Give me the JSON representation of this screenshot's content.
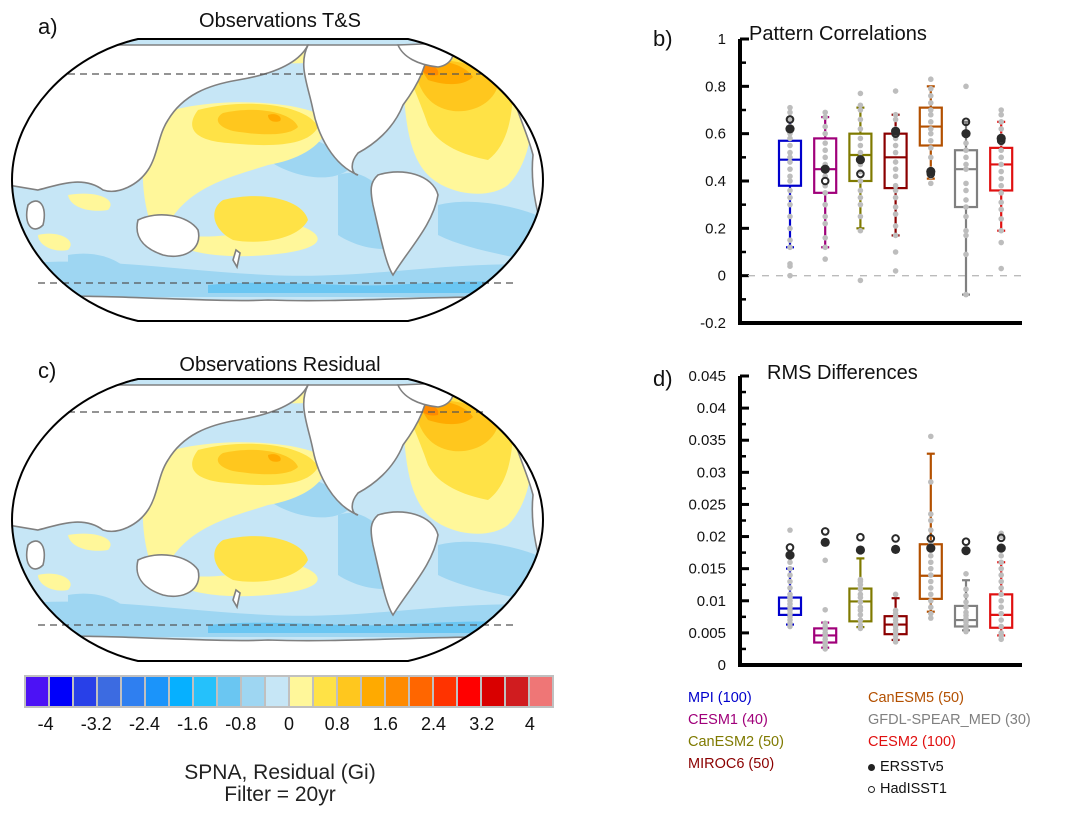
{
  "panels": {
    "a": {
      "label": "a)",
      "title": "Observations T&S"
    },
    "b": {
      "label": "b)"
    },
    "c": {
      "label": "c)",
      "title": "Observations Residual"
    },
    "d": {
      "label": "d)"
    }
  },
  "colorbar": {
    "colors": [
      "#4c12f5",
      "#0000fa",
      "#2840e8",
      "#3c6be1",
      "#2f7ff0",
      "#1b94fa",
      "#06b0ff",
      "#25c1fb",
      "#6ac6f2",
      "#9ed6f2",
      "#c6e6f6",
      "#fff79a",
      "#ffe246",
      "#ffc71e",
      "#ffaa00",
      "#ff8a00",
      "#ff6600",
      "#ff3300",
      "#ff0000",
      "#d90000",
      "#d01c1f",
      "#ef7676"
    ],
    "tick_labels": [
      "-4",
      "-3.2",
      "-2.4",
      "-1.6",
      "-0.8",
      "0",
      "0.8",
      "1.6",
      "2.4",
      "3.2",
      "4"
    ],
    "caption_line1": "SPNA, Residual (Gi)",
    "caption_line2": "Filter = 20yr"
  },
  "maps": {
    "ocean_colors": {
      "neutral_blue": "#c6e6f6",
      "mid_blue": "#9ed6f2",
      "deep_blue": "#6ac6f2",
      "pale_yellow": "#fff79a",
      "yellow": "#ffe246",
      "gold": "#ffc71e",
      "orange": "#ffaa00",
      "dark_orange": "#ff8a00"
    },
    "land_color": "#ffffff",
    "coast_color": "#808080"
  },
  "chart_data": [
    {
      "type": "box",
      "title": "Pattern Correlations",
      "ylim": [
        -0.2,
        1
      ],
      "yticks": [
        -0.2,
        0,
        0.2,
        0.4,
        0.6,
        0.8,
        1
      ],
      "ytick_labels": [
        "-0.2",
        "0",
        "0.2",
        "0.4",
        "0.6",
        "0.8",
        "1"
      ],
      "reference_line": 0,
      "categories": [
        "MPI",
        "CESM1",
        "CanESM2",
        "MIROC6",
        "CanESM5",
        "GFDL-SPEAR_MED",
        "CESM2"
      ],
      "series": [
        {
          "name": "MPI",
          "color": "#0000cc",
          "whisker_low": 0.12,
          "q1": 0.38,
          "median": 0.49,
          "q3": 0.57,
          "whisker_high": 0.66,
          "ersst": 0.62,
          "hadisst": 0.66,
          "members": [
            0.0,
            0.04,
            0.05,
            0.12,
            0.15,
            0.2,
            0.25,
            0.3,
            0.33,
            0.36,
            0.4,
            0.42,
            0.45,
            0.48,
            0.5,
            0.52,
            0.55,
            0.58,
            0.6,
            0.63,
            0.66,
            0.69,
            0.71
          ]
        },
        {
          "name": "CESM1",
          "color": "#a0007a",
          "whisker_low": 0.12,
          "q1": 0.35,
          "median": 0.45,
          "q3": 0.58,
          "whisker_high": 0.67,
          "ersst": 0.45,
          "hadisst": 0.4,
          "members": [
            0.07,
            0.12,
            0.16,
            0.22,
            0.25,
            0.3,
            0.35,
            0.38,
            0.42,
            0.47,
            0.5,
            0.53,
            0.56,
            0.6,
            0.63,
            0.67,
            0.69
          ]
        },
        {
          "name": "CanESM2",
          "color": "#7f7a00",
          "whisker_low": 0.2,
          "q1": 0.4,
          "median": 0.51,
          "q3": 0.6,
          "whisker_high": 0.71,
          "ersst": 0.49,
          "hadisst": 0.43,
          "members": [
            -0.02,
            0.19,
            0.25,
            0.3,
            0.33,
            0.36,
            0.4,
            0.44,
            0.47,
            0.52,
            0.55,
            0.58,
            0.62,
            0.66,
            0.7,
            0.72,
            0.77
          ]
        },
        {
          "name": "MIROC6",
          "color": "#8b0000",
          "whisker_low": 0.17,
          "q1": 0.37,
          "median": 0.5,
          "q3": 0.6,
          "whisker_high": 0.68,
          "ersst": 0.61,
          "hadisst": 0.6,
          "members": [
            0.02,
            0.1,
            0.17,
            0.21,
            0.26,
            0.29,
            0.33,
            0.36,
            0.38,
            0.42,
            0.45,
            0.48,
            0.52,
            0.55,
            0.58,
            0.62,
            0.66,
            0.68,
            0.78
          ]
        },
        {
          "name": "CanESM5",
          "color": "#b35000",
          "whisker_low": 0.41,
          "q1": 0.55,
          "median": 0.63,
          "q3": 0.71,
          "whisker_high": 0.8,
          "ersst": 0.44,
          "hadisst": 0.43,
          "members": [
            0.39,
            0.42,
            0.45,
            0.5,
            0.54,
            0.57,
            0.6,
            0.62,
            0.65,
            0.68,
            0.7,
            0.73,
            0.76,
            0.79,
            0.83
          ]
        },
        {
          "name": "GFDL-SPEAR_MED",
          "color": "#808080",
          "whisker_low": -0.08,
          "q1": 0.29,
          "median": 0.45,
          "q3": 0.53,
          "whisker_high": 0.65,
          "ersst": 0.6,
          "hadisst": 0.65,
          "members": [
            -0.08,
            0.09,
            0.17,
            0.19,
            0.25,
            0.29,
            0.32,
            0.36,
            0.39,
            0.45,
            0.47,
            0.5,
            0.53,
            0.56,
            0.6,
            0.8
          ]
        },
        {
          "name": "CESM2",
          "color": "#e01010",
          "whisker_low": 0.19,
          "q1": 0.36,
          "median": 0.47,
          "q3": 0.54,
          "whisker_high": 0.65,
          "ersst": 0.58,
          "hadisst": 0.57,
          "members": [
            0.03,
            0.14,
            0.19,
            0.24,
            0.28,
            0.31,
            0.35,
            0.38,
            0.41,
            0.44,
            0.47,
            0.5,
            0.53,
            0.56,
            0.59,
            0.62,
            0.65,
            0.68,
            0.7
          ]
        }
      ]
    },
    {
      "type": "box",
      "title": "RMS Differences",
      "ylim": [
        0,
        0.045
      ],
      "yticks": [
        0,
        0.005,
        0.01,
        0.015,
        0.02,
        0.025,
        0.03,
        0.035,
        0.04,
        0.045
      ],
      "ytick_labels": [
        "0",
        "0.005",
        "0.01",
        "0.015",
        "0.02",
        "0.025",
        "0.03",
        "0.035",
        "0.04",
        "0.045"
      ],
      "categories": [
        "MPI",
        "CESM1",
        "CanESM2",
        "MIROC6",
        "CanESM5",
        "GFDL-SPEAR_MED",
        "CESM2"
      ],
      "series": [
        {
          "name": "MPI",
          "color": "#0000cc",
          "whisker_low": 0.0063,
          "q1": 0.0078,
          "median": 0.0088,
          "q3": 0.0105,
          "whisker_high": 0.015,
          "ersst": 0.0171,
          "hadisst": 0.0183,
          "members": [
            0.006,
            0.0065,
            0.007,
            0.0075,
            0.008,
            0.0085,
            0.009,
            0.0095,
            0.01,
            0.0105,
            0.011,
            0.012,
            0.013,
            0.014,
            0.015,
            0.016,
            0.021
          ]
        },
        {
          "name": "CESM1",
          "color": "#a0007a",
          "whisker_low": 0.0027,
          "q1": 0.0035,
          "median": 0.0046,
          "q3": 0.0057,
          "whisker_high": 0.0066,
          "ersst": 0.0191,
          "hadisst": 0.0208,
          "members": [
            0.0025,
            0.003,
            0.0035,
            0.004,
            0.0045,
            0.005,
            0.0055,
            0.006,
            0.0065,
            0.0086,
            0.0163
          ]
        },
        {
          "name": "CanESM2",
          "color": "#7f7a00",
          "whisker_low": 0.0059,
          "q1": 0.0068,
          "median": 0.0099,
          "q3": 0.0119,
          "whisker_high": 0.0166,
          "ersst": 0.0179,
          "hadisst": 0.0199,
          "members": [
            0.0057,
            0.0062,
            0.007,
            0.0078,
            0.0085,
            0.009,
            0.0098,
            0.0105,
            0.011,
            0.0118,
            0.0125,
            0.013,
            0.0133
          ]
        },
        {
          "name": "MIROC6",
          "color": "#8b0000",
          "whisker_low": 0.0039,
          "q1": 0.0048,
          "median": 0.0063,
          "q3": 0.0076,
          "whisker_high": 0.0104,
          "ersst": 0.018,
          "hadisst": 0.0197,
          "members": [
            0.0036,
            0.004,
            0.0045,
            0.005,
            0.0055,
            0.006,
            0.0065,
            0.007,
            0.0075,
            0.008,
            0.0085,
            0.011
          ]
        },
        {
          "name": "CanESM5",
          "color": "#b35000",
          "whisker_low": 0.0083,
          "q1": 0.0103,
          "median": 0.0139,
          "q3": 0.0188,
          "whisker_high": 0.0329,
          "ersst": 0.0182,
          "hadisst": 0.0197,
          "members": [
            0.0073,
            0.008,
            0.009,
            0.01,
            0.011,
            0.012,
            0.013,
            0.014,
            0.015,
            0.016,
            0.017,
            0.018,
            0.019,
            0.021,
            0.0225,
            0.0235,
            0.0285,
            0.0356
          ]
        },
        {
          "name": "GFDL-SPEAR_MED",
          "color": "#808080",
          "whisker_low": 0.0054,
          "q1": 0.006,
          "median": 0.007,
          "q3": 0.0092,
          "whisker_high": 0.0132,
          "ersst": 0.0178,
          "hadisst": 0.0192,
          "members": [
            0.0052,
            0.0057,
            0.0062,
            0.0067,
            0.0072,
            0.0077,
            0.0082,
            0.009,
            0.0098,
            0.0108,
            0.0118,
            0.0142
          ]
        },
        {
          "name": "CESM2",
          "color": "#e01010",
          "whisker_low": 0.0046,
          "q1": 0.0058,
          "median": 0.0078,
          "q3": 0.011,
          "whisker_high": 0.016,
          "ersst": 0.0182,
          "hadisst": 0.0198,
          "members": [
            0.004,
            0.0045,
            0.005,
            0.006,
            0.007,
            0.008,
            0.009,
            0.01,
            0.011,
            0.012,
            0.013,
            0.014,
            0.015,
            0.016,
            0.017,
            0.02,
            0.0205
          ]
        }
      ]
    }
  ],
  "legend": {
    "col1": [
      {
        "text": "MPI (100)",
        "color": "#0000cc"
      },
      {
        "text": "CESM1 (40)",
        "color": "#a0007a"
      },
      {
        "text": "CanESM2 (50)",
        "color": "#7f7a00"
      },
      {
        "text": "MIROC6 (50)",
        "color": "#8b0000"
      }
    ],
    "col2": [
      {
        "text": "CanESM5 (50)",
        "color": "#b35000"
      },
      {
        "text": "GFDL-SPEAR_MED (30)",
        "color": "#808080"
      },
      {
        "text": "CESM2 (100)",
        "color": "#e01010"
      }
    ],
    "markers": [
      {
        "text": "ERSSTv5",
        "marker": "filled-circle"
      },
      {
        "text": "HadISST1",
        "marker": "open-circle"
      }
    ]
  }
}
